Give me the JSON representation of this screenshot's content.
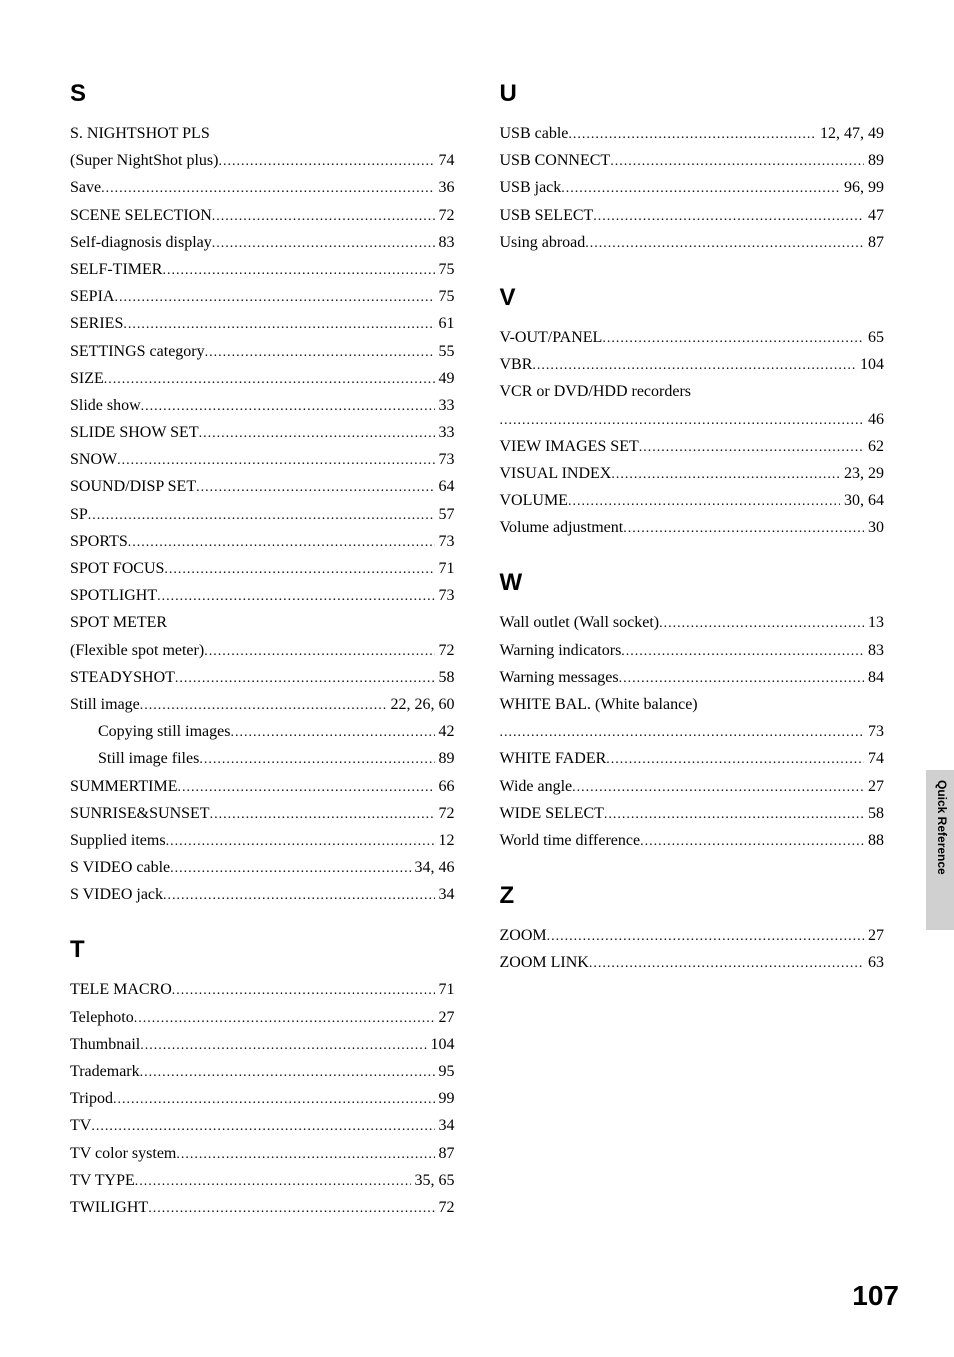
{
  "sideTab": "Quick Reference",
  "pageNumber": "107",
  "columns": [
    {
      "sections": [
        {
          "heading": "S",
          "first": true,
          "entries": [
            {
              "label": "S. NIGHTSHOT PLS",
              "continuation": "(Super NightShot plus)",
              "page": "74"
            },
            {
              "label": "Save",
              "page": "36"
            },
            {
              "label": "SCENE SELECTION",
              "page": "72"
            },
            {
              "label": "Self-diagnosis display",
              "page": "83"
            },
            {
              "label": "SELF-TIMER",
              "page": "75"
            },
            {
              "label": "SEPIA",
              "page": "75"
            },
            {
              "label": "SERIES",
              "page": "61"
            },
            {
              "label": "SETTINGS category",
              "page": "55"
            },
            {
              "label": "SIZE",
              "page": "49"
            },
            {
              "label": "Slide show",
              "page": "33"
            },
            {
              "label": "SLIDE SHOW SET",
              "page": "33"
            },
            {
              "label": "SNOW",
              "page": "73"
            },
            {
              "label": "SOUND/DISP SET",
              "page": "64"
            },
            {
              "label": "SP",
              "page": "57"
            },
            {
              "label": "SPORTS",
              "page": "73"
            },
            {
              "label": "SPOT FOCUS",
              "page": "71"
            },
            {
              "label": "SPOTLIGHT",
              "page": "73"
            },
            {
              "label": "SPOT METER",
              "continuation": "(Flexible spot meter)",
              "page": "72"
            },
            {
              "label": "STEADYSHOT",
              "page": "58"
            },
            {
              "label": "Still image",
              "page": "22, 26, 60"
            },
            {
              "label": "Copying still images",
              "page": "42",
              "sub": true
            },
            {
              "label": "Still image files",
              "page": "89",
              "sub": true
            },
            {
              "label": "SUMMERTIME",
              "page": "66"
            },
            {
              "label": "SUNRISE&SUNSET",
              "page": "72"
            },
            {
              "label": "Supplied items",
              "page": "12"
            },
            {
              "label": "S VIDEO cable",
              "page": "34, 46"
            },
            {
              "label": "S VIDEO jack",
              "page": "34"
            }
          ]
        },
        {
          "heading": "T",
          "entries": [
            {
              "label": "TELE MACRO",
              "page": "71"
            },
            {
              "label": "Telephoto",
              "page": "27"
            },
            {
              "label": "Thumbnail",
              "page": "104"
            },
            {
              "label": "Trademark",
              "page": "95"
            },
            {
              "label": "Tripod",
              "page": "99"
            },
            {
              "label": "TV",
              "page": "34"
            },
            {
              "label": "TV color system",
              "page": "87"
            },
            {
              "label": "TV TYPE",
              "page": "35, 65"
            },
            {
              "label": "TWILIGHT",
              "page": "72"
            }
          ]
        }
      ]
    },
    {
      "sections": [
        {
          "heading": "U",
          "first": true,
          "entries": [
            {
              "label": "USB cable",
              "page": "12, 47, 49"
            },
            {
              "label": "USB CONNECT",
              "page": "89"
            },
            {
              "label": "USB jack",
              "page": "96, 99"
            },
            {
              "label": "USB SELECT",
              "page": "47"
            },
            {
              "label": "Using abroad",
              "page": "87"
            }
          ]
        },
        {
          "heading": "V",
          "entries": [
            {
              "label": "V-OUT/PANEL",
              "page": "65"
            },
            {
              "label": "VBR",
              "page": "104"
            },
            {
              "label": "VCR or DVD/HDD recorders",
              "continuation": "",
              "page": "46"
            },
            {
              "label": "VIEW IMAGES SET",
              "page": "62"
            },
            {
              "label": "VISUAL INDEX",
              "page": "23, 29"
            },
            {
              "label": "VOLUME",
              "page": "30, 64"
            },
            {
              "label": "Volume adjustment",
              "page": "30"
            }
          ]
        },
        {
          "heading": "W",
          "entries": [
            {
              "label": "Wall outlet (Wall socket)",
              "page": "13"
            },
            {
              "label": "Warning indicators",
              "page": "83"
            },
            {
              "label": "Warning messages",
              "page": "84"
            },
            {
              "label": "WHITE BAL. (White balance)",
              "continuation": "",
              "page": "73"
            },
            {
              "label": "WHITE FADER",
              "page": "74"
            },
            {
              "label": "Wide angle",
              "page": "27"
            },
            {
              "label": "WIDE SELECT",
              "page": "58"
            },
            {
              "label": "World time difference",
              "page": "88"
            }
          ]
        },
        {
          "heading": "Z",
          "entries": [
            {
              "label": "ZOOM",
              "page": "27"
            },
            {
              "label": "ZOOM LINK",
              "page": "63"
            }
          ]
        }
      ]
    }
  ]
}
